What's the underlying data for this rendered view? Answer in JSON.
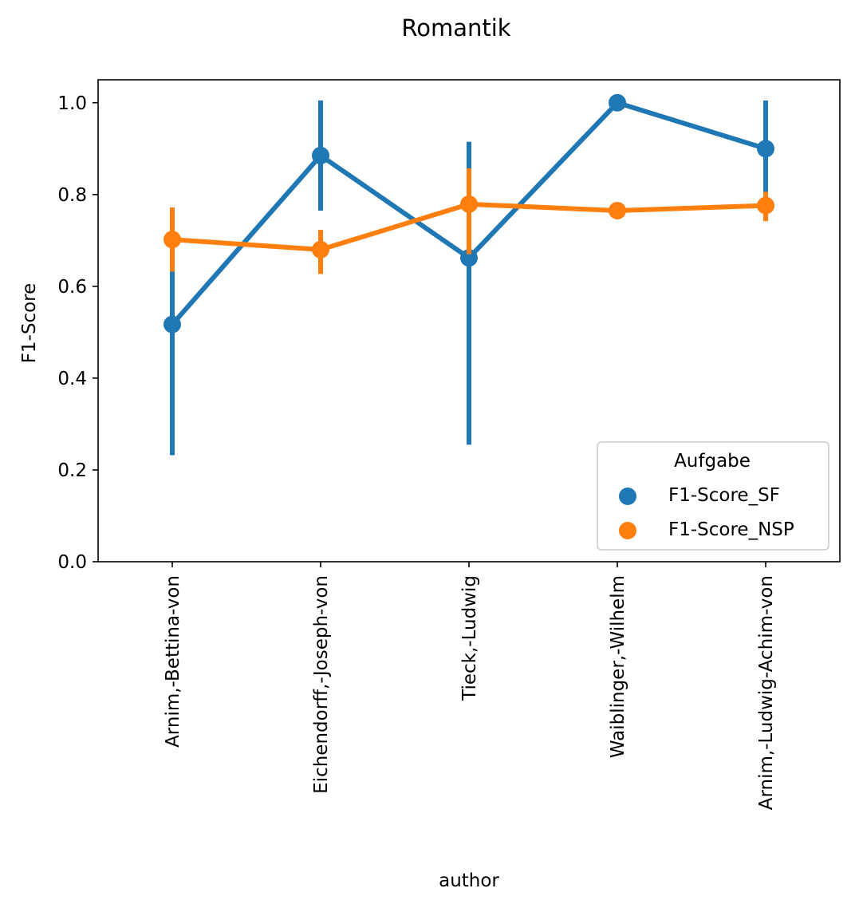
{
  "chart_data": {
    "type": "line",
    "title": "Romantik",
    "xlabel": "author",
    "ylabel": "F1-Score",
    "categories": [
      "Arnim,-Bettina-von",
      "Eichendorff,-Joseph-von",
      "Tieck,-Ludwig",
      "Waiblinger,-Wilhelm",
      "Arnim,-Ludwig-Achim-von"
    ],
    "ylim": [
      0.0,
      1.05
    ],
    "yticks": [
      0.0,
      0.2,
      0.4,
      0.6,
      0.8,
      1.0
    ],
    "ytick_labels": [
      "0.0",
      "0.2",
      "0.4",
      "0.6",
      "0.8",
      "1.0"
    ],
    "grid": false,
    "legend": {
      "title": "Aufgabe",
      "placement": "lower-right"
    },
    "series": [
      {
        "name": "F1-Score_SF",
        "color": "#1f77b4",
        "values": [
          0.517,
          0.885,
          0.662,
          1.0,
          0.9
        ],
        "error_low": [
          0.232,
          0.765,
          0.255,
          1.0,
          0.795
        ],
        "error_high": [
          0.632,
          1.005,
          0.915,
          1.0,
          1.005
        ]
      },
      {
        "name": "F1-Score_NSP",
        "color": "#ff7f0e",
        "values": [
          0.702,
          0.68,
          0.779,
          0.765,
          0.776
        ],
        "error_low": [
          0.632,
          0.627,
          0.67,
          0.765,
          0.742
        ],
        "error_high": [
          0.772,
          0.723,
          0.857,
          0.765,
          0.806
        ]
      }
    ]
  }
}
